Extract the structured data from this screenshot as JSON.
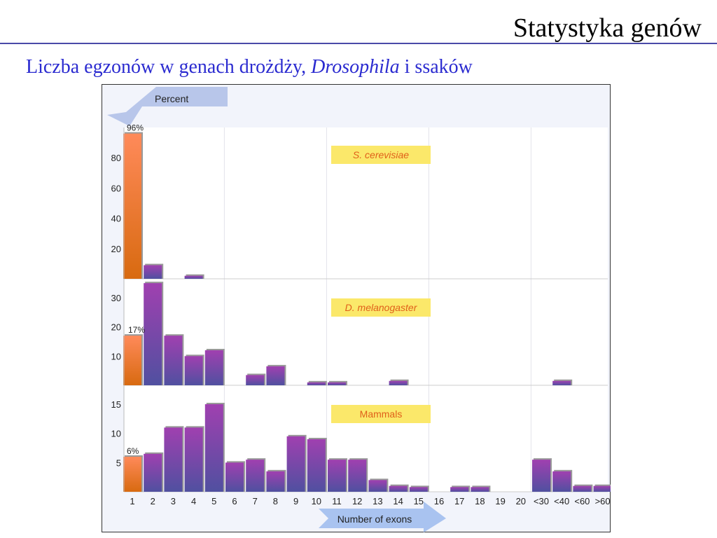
{
  "slide": {
    "title": "Statystyka genów",
    "subtitle_pre": "Liczba egzonów w genach drożdży, ",
    "subtitle_italic": "Drosophila",
    "subtitle_post": " i ssaków"
  },
  "chart_data": {
    "type": "bar",
    "ylabel": "Percent",
    "xlabel": "Number of exons",
    "categories": [
      "1",
      "2",
      "3",
      "4",
      "5",
      "6",
      "7",
      "8",
      "9",
      "10",
      "11",
      "12",
      "13",
      "14",
      "15",
      "16",
      "17",
      "18",
      "19",
      "20",
      "<30",
      "<40",
      "<60",
      ">60"
    ],
    "panels": [
      {
        "name": "S. cerevisiae",
        "ylim": [
          0,
          100
        ],
        "yticks": [
          20,
          40,
          60,
          80
        ],
        "label_first": "96%",
        "values": [
          96,
          9,
          0,
          2,
          0,
          0,
          0,
          0,
          0,
          0,
          0,
          0,
          0,
          0,
          0,
          0,
          0,
          0,
          0,
          0,
          0,
          0,
          0,
          0
        ]
      },
      {
        "name": "D. melanogaster",
        "ylim": [
          0,
          36
        ],
        "yticks": [
          10,
          20,
          30
        ],
        "label_first": "17%",
        "values": [
          17,
          35,
          17,
          10,
          12,
          0,
          3.5,
          6.5,
          0,
          1,
          1,
          0,
          0,
          1.5,
          0,
          0,
          0,
          0,
          0,
          0,
          0,
          1.5,
          0,
          0
        ]
      },
      {
        "name": "Mammals",
        "ylim": [
          0,
          18
        ],
        "yticks": [
          5,
          10,
          15
        ],
        "label_first": "6%",
        "values": [
          6,
          6.5,
          11,
          11,
          15,
          5,
          5.5,
          3.5,
          9.5,
          9,
          5.5,
          5.5,
          2,
          1,
          0.8,
          0,
          0.8,
          0.8,
          0,
          0,
          5.5,
          3.5,
          1,
          1
        ]
      }
    ],
    "colors": {
      "first": "#f07a3a",
      "bars": "#8a48b0",
      "label_box": "#fbe86a",
      "label_text": "#e0601a"
    }
  }
}
